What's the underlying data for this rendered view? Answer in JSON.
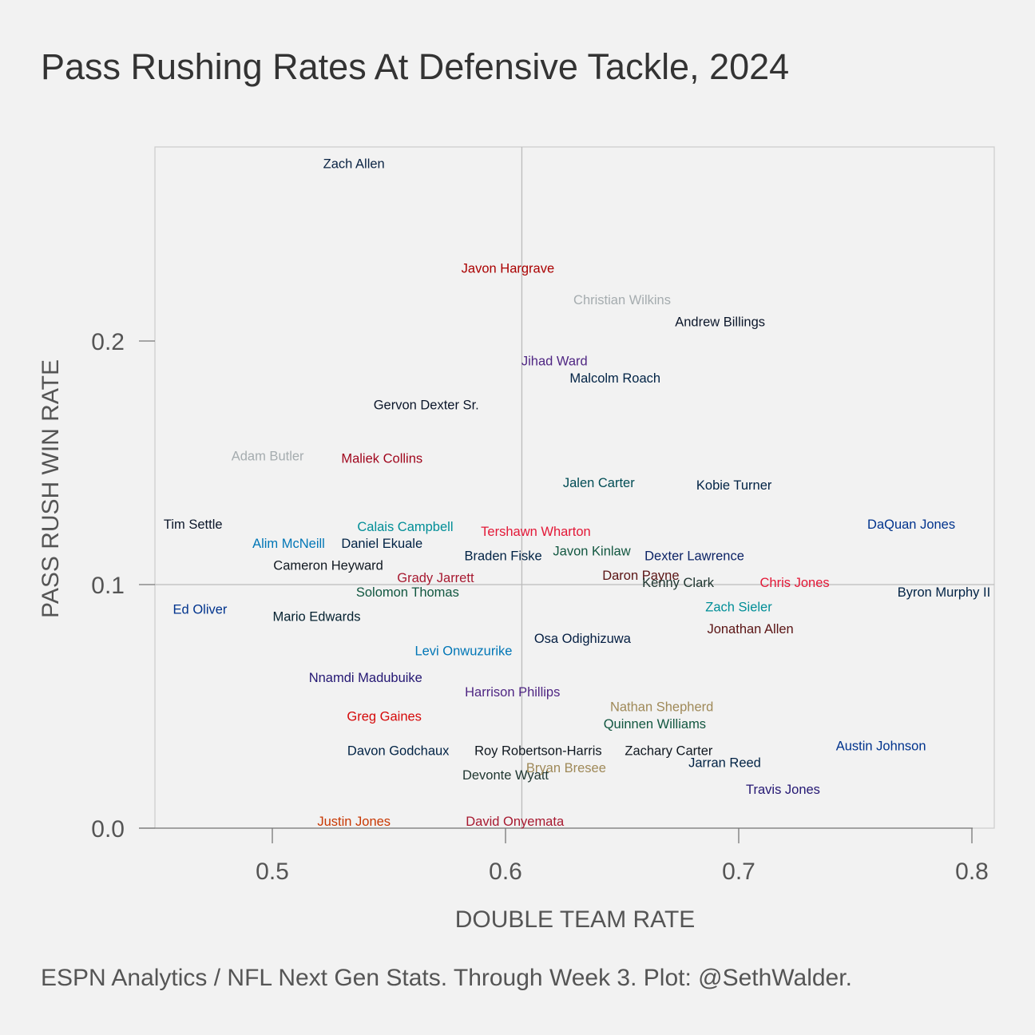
{
  "title": "Pass Rushing Rates At Defensive Tackle, 2024",
  "caption": "ESPN Analytics / NFL Next Gen Stats. Through Week 3. Plot: @SethWalder.",
  "chart_data": {
    "type": "scatter",
    "title": "Pass Rushing Rates At Defensive Tackle, 2024",
    "xlabel": "DOUBLE TEAM RATE",
    "ylabel": "PASS RUSH WIN RATE",
    "xlim": [
      0.45,
      0.81
    ],
    "ylim": [
      0.0,
      0.28
    ],
    "xticks": [
      0.5,
      0.6,
      0.7,
      0.8
    ],
    "xtick_labels": [
      "0.5",
      "0.6",
      "0.7",
      "0.8"
    ],
    "yticks": [
      0.0,
      0.1,
      0.2
    ],
    "ytick_labels": [
      "0.0",
      "0.1",
      "0.2"
    ],
    "reference_lines": {
      "x": 0.607,
      "y": 0.1
    },
    "grid": false,
    "points": [
      {
        "label": "Zach Allen",
        "x": 0.535,
        "y": 0.273,
        "color": "#0a2343"
      },
      {
        "label": "Javon Hargrave",
        "x": 0.601,
        "y": 0.23,
        "color": "#aa0000"
      },
      {
        "label": "Christian Wilkins",
        "x": 0.65,
        "y": 0.217,
        "color": "#a5acaf"
      },
      {
        "label": "Andrew Billings",
        "x": 0.692,
        "y": 0.208,
        "color": "#0b162a"
      },
      {
        "label": "Jihad Ward",
        "x": 0.621,
        "y": 0.192,
        "color": "#4f2683"
      },
      {
        "label": "Malcolm Roach",
        "x": 0.647,
        "y": 0.185,
        "color": "#002244"
      },
      {
        "label": "Gervon Dexter Sr.",
        "x": 0.566,
        "y": 0.174,
        "color": "#0b162a"
      },
      {
        "label": "Adam Butler",
        "x": 0.498,
        "y": 0.153,
        "color": "#a5acaf"
      },
      {
        "label": "Maliek Collins",
        "x": 0.547,
        "y": 0.152,
        "color": "#9f041b"
      },
      {
        "label": "Jalen Carter",
        "x": 0.64,
        "y": 0.142,
        "color": "#004c54"
      },
      {
        "label": "Kobie Turner",
        "x": 0.698,
        "y": 0.141,
        "color": "#002244"
      },
      {
        "label": "Tim Settle",
        "x": 0.466,
        "y": 0.125,
        "color": "#0b162a"
      },
      {
        "label": "Calais Campbell",
        "x": 0.557,
        "y": 0.124,
        "color": "#008e97"
      },
      {
        "label": "DaQuan Jones",
        "x": 0.774,
        "y": 0.125,
        "color": "#00338d"
      },
      {
        "label": "Tershawn Wharton",
        "x": 0.613,
        "y": 0.122,
        "color": "#e31837"
      },
      {
        "label": "Alim McNeill",
        "x": 0.507,
        "y": 0.117,
        "color": "#0076b6"
      },
      {
        "label": "Daniel Ekuale",
        "x": 0.547,
        "y": 0.117,
        "color": "#002244"
      },
      {
        "label": "Braden Fiske",
        "x": 0.599,
        "y": 0.112,
        "color": "#002244"
      },
      {
        "label": "Javon Kinlaw",
        "x": 0.637,
        "y": 0.114,
        "color": "#125740"
      },
      {
        "label": "Dexter Lawrence",
        "x": 0.681,
        "y": 0.112,
        "color": "#0b2265"
      },
      {
        "label": "Cameron Heyward",
        "x": 0.524,
        "y": 0.108,
        "color": "#101820"
      },
      {
        "label": "Grady Jarrett",
        "x": 0.57,
        "y": 0.103,
        "color": "#a71930"
      },
      {
        "label": "Daron Payne",
        "x": 0.658,
        "y": 0.104,
        "color": "#5a1414"
      },
      {
        "label": "Kenny Clark",
        "x": 0.674,
        "y": 0.101,
        "color": "#203731"
      },
      {
        "label": "Chris Jones",
        "x": 0.724,
        "y": 0.101,
        "color": "#e31837"
      },
      {
        "label": "Solomon Thomas",
        "x": 0.558,
        "y": 0.097,
        "color": "#125740"
      },
      {
        "label": "Byron Murphy II",
        "x": 0.788,
        "y": 0.097,
        "color": "#002244"
      },
      {
        "label": "Ed Oliver",
        "x": 0.469,
        "y": 0.09,
        "color": "#00338d"
      },
      {
        "label": "Zach Sieler",
        "x": 0.7,
        "y": 0.091,
        "color": "#008e97"
      },
      {
        "label": "Mario Edwards",
        "x": 0.519,
        "y": 0.087,
        "color": "#03202f"
      },
      {
        "label": "Jonathan Allen",
        "x": 0.705,
        "y": 0.082,
        "color": "#5a1414"
      },
      {
        "label": "Osa Odighizuwa",
        "x": 0.633,
        "y": 0.078,
        "color": "#041e42"
      },
      {
        "label": "Levi Onwuzurike",
        "x": 0.582,
        "y": 0.073,
        "color": "#0076b6"
      },
      {
        "label": "Nnamdi Madubuike",
        "x": 0.54,
        "y": 0.062,
        "color": "#241773"
      },
      {
        "label": "Harrison Phillips",
        "x": 0.603,
        "y": 0.056,
        "color": "#4f2683"
      },
      {
        "label": "Nathan Shepherd",
        "x": 0.667,
        "y": 0.05,
        "color": "#9f8958"
      },
      {
        "label": "Greg Gaines",
        "x": 0.548,
        "y": 0.046,
        "color": "#d50a0a"
      },
      {
        "label": "Quinnen Williams",
        "x": 0.664,
        "y": 0.043,
        "color": "#125740"
      },
      {
        "label": "Austin Johnson",
        "x": 0.761,
        "y": 0.034,
        "color": "#00338d"
      },
      {
        "label": "Davon Godchaux",
        "x": 0.554,
        "y": 0.032,
        "color": "#002244"
      },
      {
        "label": "Roy Robertson-Harris",
        "x": 0.614,
        "y": 0.032,
        "color": "#101820"
      },
      {
        "label": "Zachary Carter",
        "x": 0.67,
        "y": 0.032,
        "color": "#101820"
      },
      {
        "label": "Jarran Reed",
        "x": 0.694,
        "y": 0.027,
        "color": "#002244"
      },
      {
        "label": "Devonte Wyatt",
        "x": 0.6,
        "y": 0.022,
        "color": "#203731"
      },
      {
        "label": "Bryan Bresee",
        "x": 0.626,
        "y": 0.025,
        "color": "#9f8958"
      },
      {
        "label": "Travis Jones",
        "x": 0.719,
        "y": 0.016,
        "color": "#241773"
      },
      {
        "label": "Justin Jones",
        "x": 0.535,
        "y": 0.003,
        "color": "#c83803"
      },
      {
        "label": "David Onyemata",
        "x": 0.604,
        "y": 0.003,
        "color": "#a71930"
      }
    ]
  }
}
